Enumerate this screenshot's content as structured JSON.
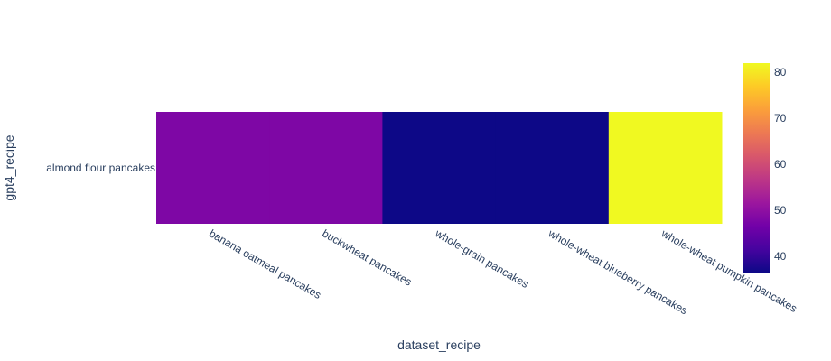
{
  "chart_data": {
    "type": "heatmap",
    "title": "",
    "xlabel": "dataset_recipe",
    "ylabel": "gpt4_recipe",
    "x": [
      "banana oatmeal pancakes",
      "buckwheat pancakes",
      "whole-grain pancakes",
      "whole-wheat blueberry pancakes",
      "whole-wheat pumpkin pancakes"
    ],
    "y": [
      "almond flour pancakes"
    ],
    "z": [
      [
        48,
        48,
        36.5,
        36.5,
        82
      ]
    ],
    "colorscale": [
      "#0d0887",
      "#46039f",
      "#7201a8",
      "#9c179e",
      "#bd3786",
      "#d8576b",
      "#ed7953",
      "#fb9f3a",
      "#fdca26",
      "#f0f921"
    ],
    "colorbar": {
      "range": [
        36.5,
        82
      ],
      "ticks": [
        40,
        50,
        60,
        70,
        80
      ]
    }
  }
}
